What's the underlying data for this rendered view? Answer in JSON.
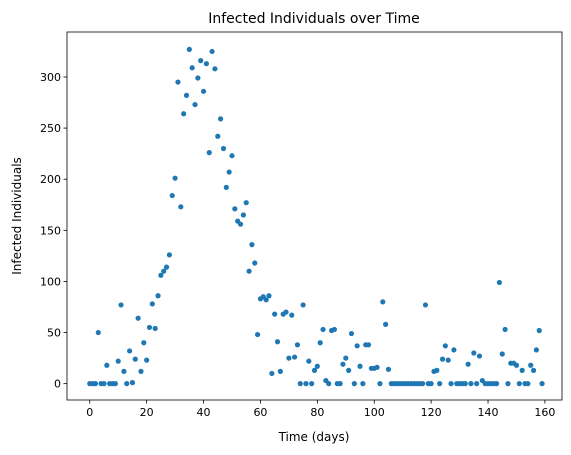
{
  "chart_data": {
    "type": "scatter",
    "title": "Infected Individuals over Time",
    "xlabel": "Time (days)",
    "ylabel": "Infected Individuals",
    "xlim": [
      -8,
      166
    ],
    "ylim": [
      -16,
      344
    ],
    "xticks": [
      0,
      20,
      40,
      60,
      80,
      100,
      120,
      140,
      160
    ],
    "yticks": [
      0,
      50,
      100,
      150,
      200,
      250,
      300
    ],
    "grid": false,
    "legend": "none",
    "marker_color": "#1f77b4",
    "series": [
      {
        "x": [
          0,
          1,
          2,
          3,
          4,
          5,
          6,
          7,
          8,
          9,
          10,
          11,
          12,
          13,
          14,
          15,
          16,
          17,
          18,
          19,
          20,
          21,
          22,
          23,
          24,
          25,
          26,
          27,
          28,
          29,
          30,
          31,
          32,
          33,
          34,
          35,
          36,
          37,
          38,
          39,
          40,
          41,
          42,
          43,
          44,
          45,
          46,
          47,
          48,
          49,
          50,
          51,
          52,
          53,
          54,
          55,
          56,
          57,
          58,
          59,
          60,
          61,
          62,
          63,
          64,
          65,
          66,
          67,
          68,
          69,
          70,
          71,
          72,
          73,
          74,
          75,
          76,
          77,
          78,
          79,
          80,
          81,
          82,
          83,
          84,
          85,
          86,
          87,
          88,
          89,
          90,
          91,
          92,
          93,
          94,
          95,
          96,
          97,
          98,
          99,
          100,
          101,
          102,
          103,
          104,
          105,
          106,
          107,
          108,
          109,
          110,
          111,
          112,
          113,
          114,
          115,
          116,
          117,
          118,
          119,
          120,
          121,
          122,
          123,
          124,
          125,
          126,
          127,
          128,
          129,
          130,
          131,
          132,
          133,
          134,
          135,
          136,
          137,
          138,
          139,
          140,
          141,
          142,
          143,
          144,
          145,
          146,
          147,
          148,
          149,
          150,
          151,
          152,
          153,
          154,
          155,
          156,
          157,
          158,
          159
        ],
        "y": [
          0,
          0,
          0,
          50,
          0,
          0,
          18,
          0,
          0,
          0,
          22,
          77,
          12,
          0,
          32,
          1,
          24,
          64,
          12,
          40,
          23,
          55,
          78,
          54,
          86,
          106,
          110,
          114,
          126,
          184,
          201,
          295,
          173,
          264,
          282,
          327,
          309,
          273,
          299,
          316,
          286,
          313,
          226,
          325,
          308,
          242,
          259,
          230,
          192,
          207,
          223,
          171,
          159,
          156,
          165,
          177,
          110,
          136,
          118,
          48,
          83,
          85,
          82,
          86,
          10,
          68,
          41,
          12,
          68,
          70,
          25,
          67,
          26,
          38,
          0,
          77,
          0,
          22,
          0,
          13,
          17,
          40,
          53,
          3,
          0,
          52,
          53,
          0,
          0,
          19,
          25,
          13,
          49,
          0,
          37,
          17,
          0,
          38,
          38,
          15,
          15,
          16,
          0,
          80,
          58,
          14,
          0,
          0,
          0,
          0,
          0,
          0,
          0,
          0,
          0,
          0,
          0,
          0,
          77,
          0,
          0,
          12,
          13,
          0,
          24,
          37,
          23,
          0,
          33,
          0,
          0,
          0,
          0,
          19,
          0,
          30,
          0,
          27,
          3,
          0,
          0,
          0,
          0,
          0,
          99,
          29,
          53,
          0,
          20,
          20,
          18,
          0,
          13,
          0,
          0,
          18,
          13,
          33,
          52,
          0
        ]
      }
    ]
  }
}
